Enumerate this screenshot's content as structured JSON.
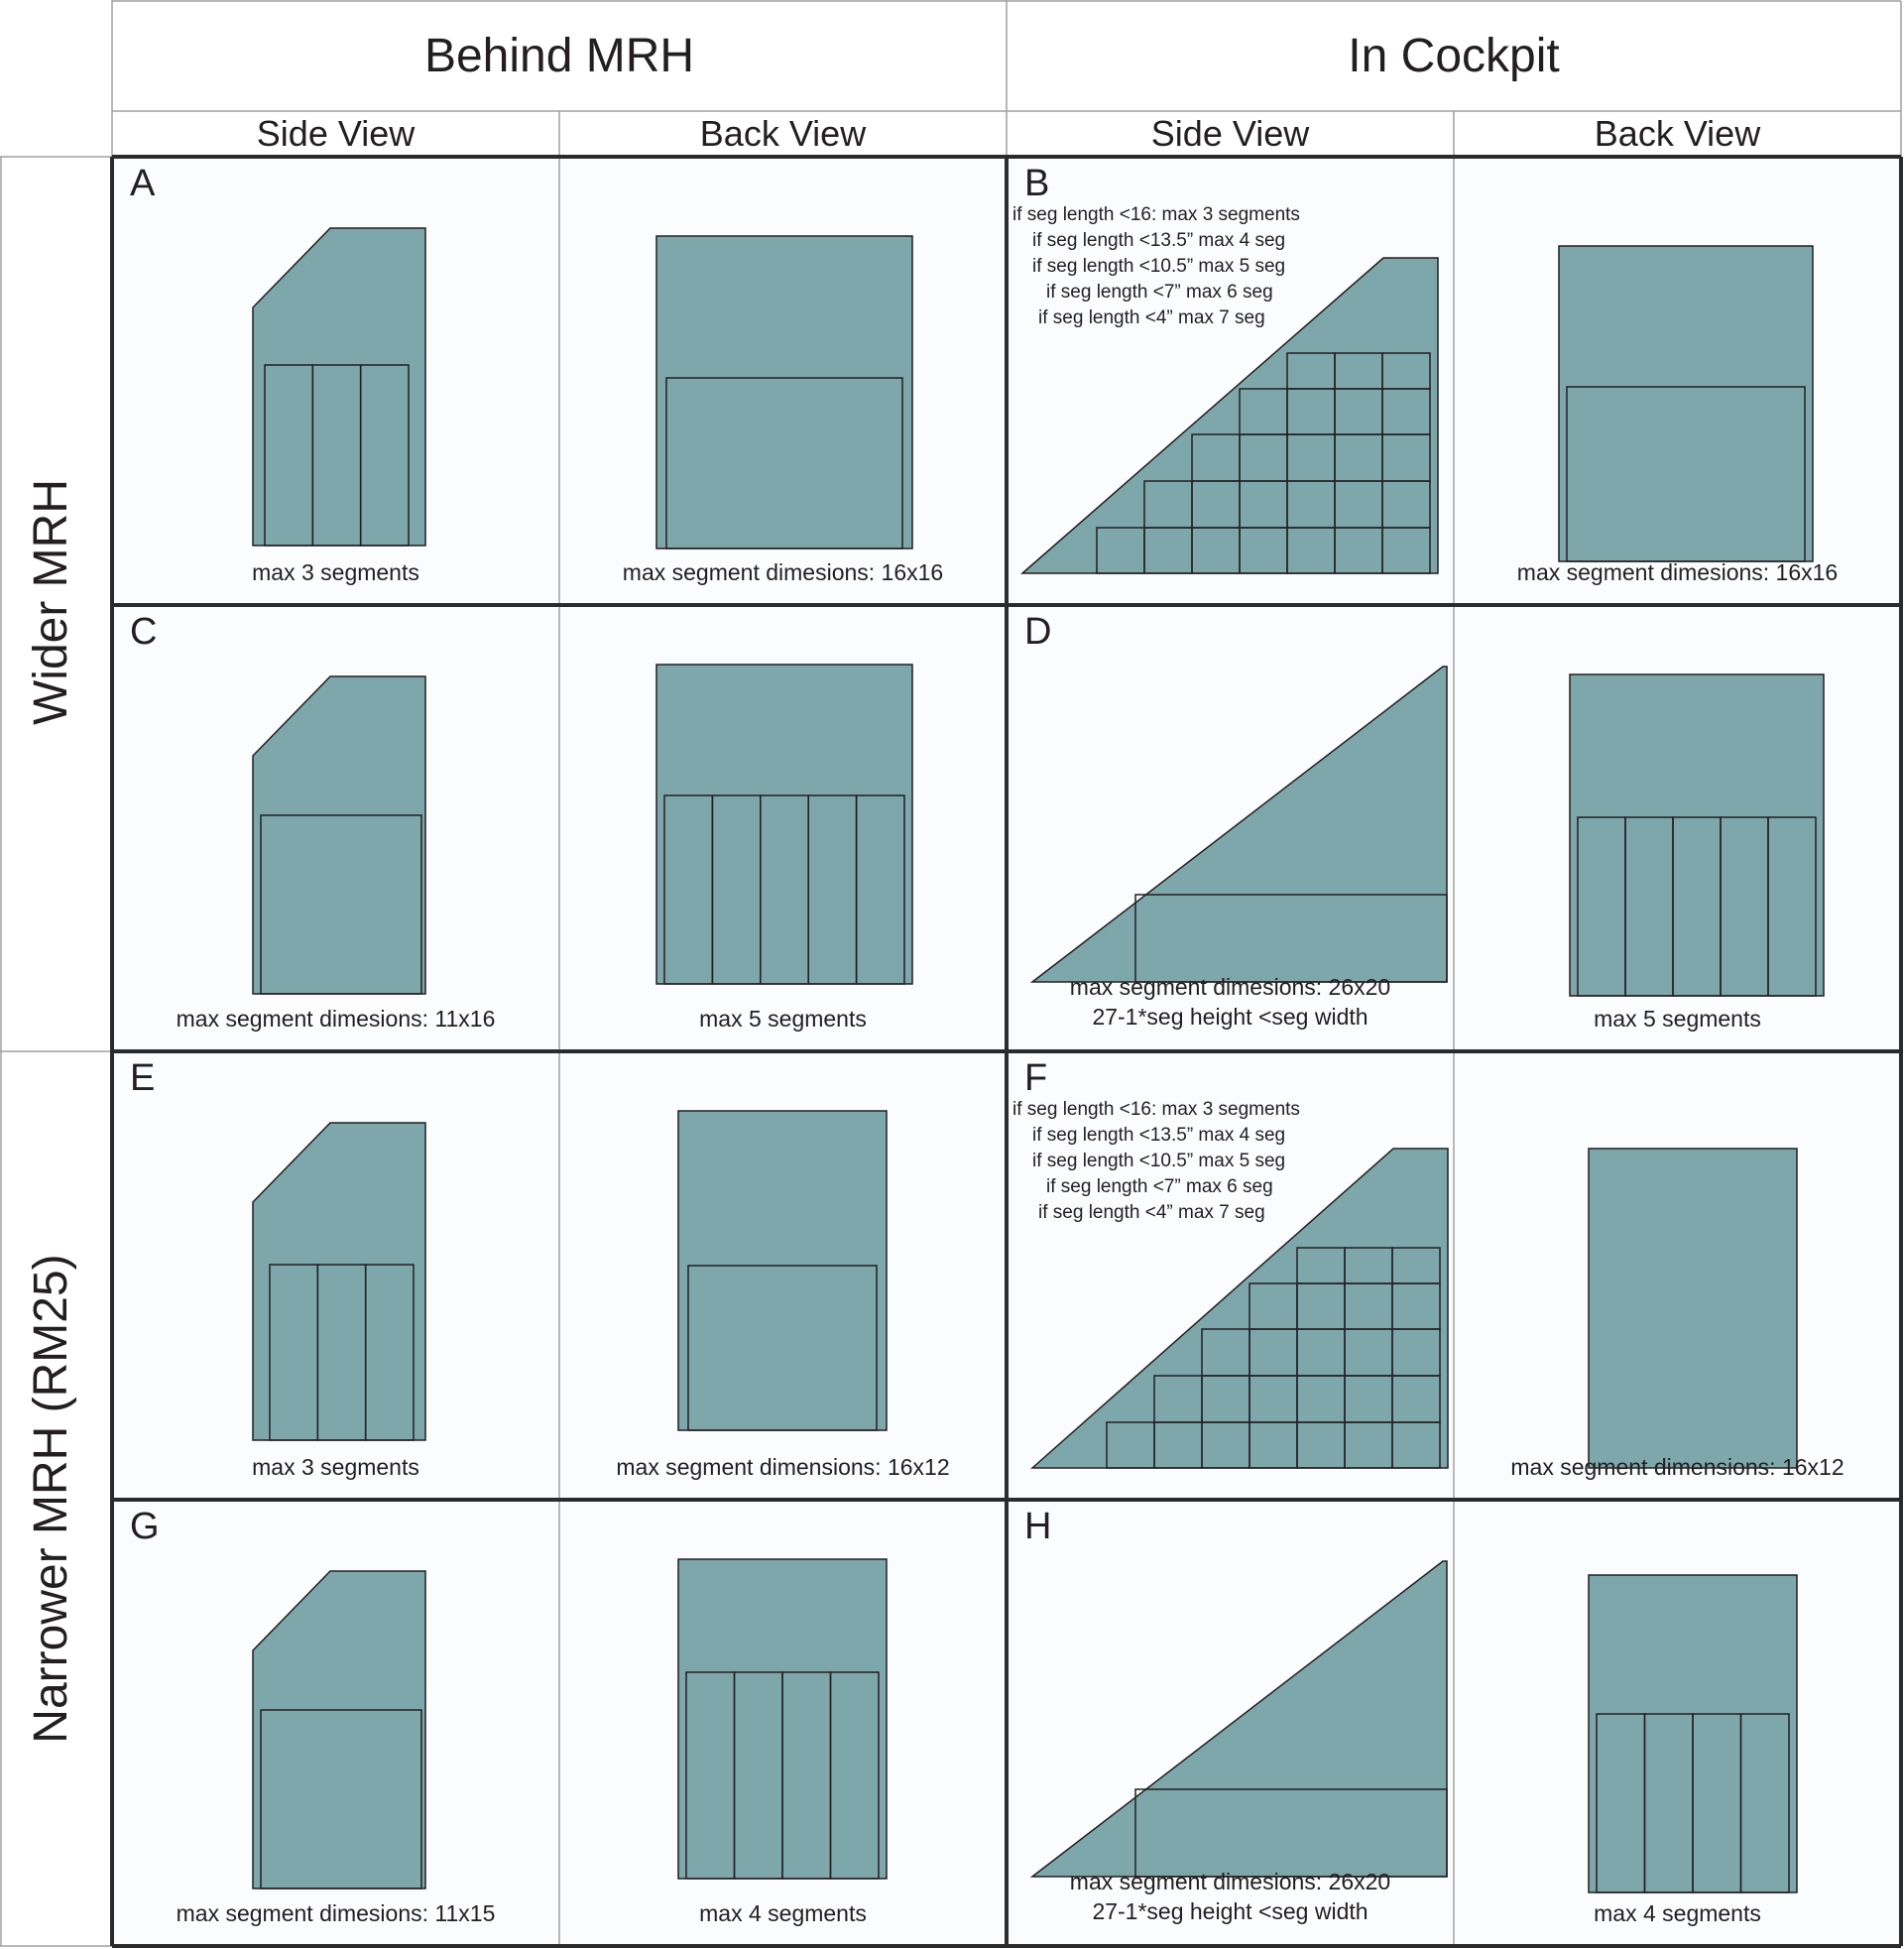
{
  "column_groups": [
    {
      "label": "Behind MRH"
    },
    {
      "label": "In Cockpit"
    }
  ],
  "column_subheaders": [
    "Side View",
    "Back View",
    "Side View",
    "Back View"
  ],
  "row_groups": [
    {
      "label": "Wider MRH"
    },
    {
      "label": "Narrower MRH (RM25)"
    }
  ],
  "panels": [
    {
      "id": "A",
      "letter": "A",
      "view": "side",
      "location": "behind",
      "captions": [
        "max 3 segments"
      ],
      "segments": 3
    },
    {
      "id": "A-back",
      "letter": "",
      "view": "back",
      "location": "behind",
      "captions": [
        "max segment dimesions: 16x16"
      ],
      "segments": 1
    },
    {
      "id": "B",
      "letter": "B",
      "view": "side",
      "location": "cockpit",
      "notes": [
        "if seg length <16: max 3 segments",
        "if seg length <13.5” max 4 seg",
        "if seg length <10.5” max 5 seg",
        "if seg length <7” max 6 seg",
        "if seg length <4” max 7 seg"
      ],
      "captions": [],
      "stair_rows": [
        7,
        6,
        5,
        4,
        3
      ]
    },
    {
      "id": "B-back",
      "letter": "",
      "view": "back",
      "location": "cockpit",
      "captions": [
        "max segment dimesions: 16x16"
      ],
      "segments": 1
    },
    {
      "id": "C",
      "letter": "C",
      "view": "side",
      "location": "behind",
      "captions": [
        "max segment dimesions: 11x16"
      ],
      "segments": 1
    },
    {
      "id": "C-back",
      "letter": "",
      "view": "back",
      "location": "behind",
      "captions": [
        "max 5 segments"
      ],
      "segments": 5
    },
    {
      "id": "D",
      "letter": "D",
      "view": "side",
      "location": "cockpit",
      "captions": [
        "max segment dimesions: 26x20",
        "27-1*seg height <seg width"
      ],
      "segments": 1
    },
    {
      "id": "D-back",
      "letter": "",
      "view": "back",
      "location": "cockpit",
      "captions": [
        "max 5 segments"
      ],
      "segments": 5
    },
    {
      "id": "E",
      "letter": "E",
      "view": "side",
      "location": "behind",
      "captions": [
        "max 3 segments"
      ],
      "segments": 3
    },
    {
      "id": "E-back",
      "letter": "",
      "view": "back",
      "location": "behind",
      "captions": [
        "max segment dimensions: 16x12"
      ],
      "segments": 1
    },
    {
      "id": "F",
      "letter": "F",
      "view": "side",
      "location": "cockpit",
      "notes": [
        "if seg length <16: max 3 segments",
        "if seg length <13.5” max 4 seg",
        "if seg length <10.5” max 5 seg",
        "if seg length <7” max 6 seg",
        "if seg length <4” max 7 seg"
      ],
      "captions": [],
      "stair_rows": [
        7,
        6,
        5,
        4,
        3
      ]
    },
    {
      "id": "F-back",
      "letter": "",
      "view": "back",
      "location": "cockpit",
      "captions": [
        "max segment dimensions: 16x12"
      ],
      "segments": 0
    },
    {
      "id": "G",
      "letter": "G",
      "view": "side",
      "location": "behind",
      "captions": [
        "max segment dimesions: 11x15"
      ],
      "segments": 1
    },
    {
      "id": "G-back",
      "letter": "",
      "view": "back",
      "location": "behind",
      "captions": [
        "max 4 segments"
      ],
      "segments": 4
    },
    {
      "id": "H",
      "letter": "H",
      "view": "side",
      "location": "cockpit",
      "captions": [
        "max segment dimesions: 26x20",
        "27-1*seg height <seg width"
      ],
      "segments": 1
    },
    {
      "id": "H-back",
      "letter": "",
      "view": "back",
      "location": "cockpit",
      "captions": [
        "max 4 segments"
      ],
      "segments": 4
    }
  ],
  "colors": {
    "shape_fill": "#7ea7ac",
    "outline": "#231f20",
    "thick_border": "#2b2b2b",
    "thin_border": "#a0a0a0",
    "cell_bg": "#fbfcfd"
  }
}
